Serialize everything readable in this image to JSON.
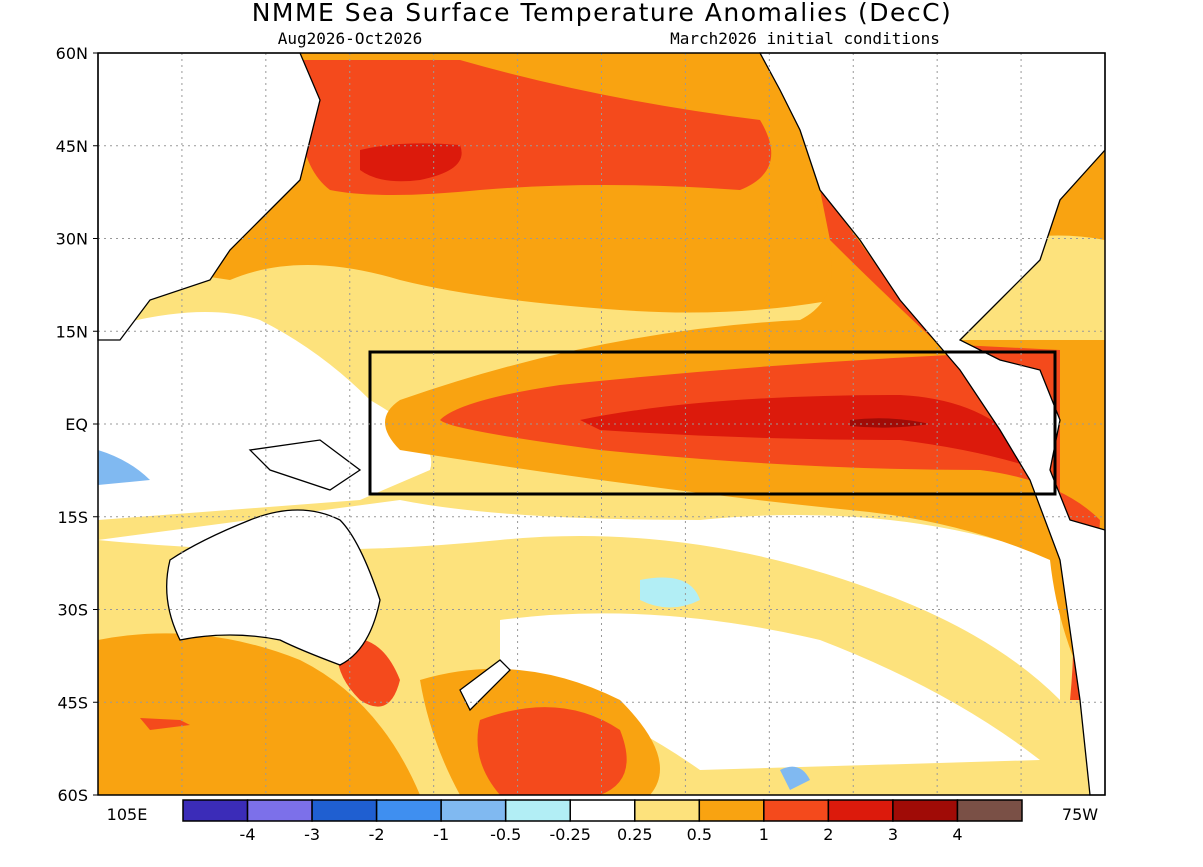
{
  "title": "NMME Sea Surface Temperature Anomalies (DecC)",
  "subtitle_left": "Aug2026-Oct2026",
  "subtitle_right": "March2026 initial conditions",
  "lat_labels": [
    "60N",
    "45N",
    "30N",
    "15N",
    "EQ",
    "15S",
    "30S",
    "45S",
    "60S"
  ],
  "lon_labels": [
    "105E",
    "75W"
  ],
  "colorbar": {
    "colors": [
      "#3b2cb8",
      "#7c70ea",
      "#1f5fd1",
      "#3f8ff0",
      "#80b9f1",
      "#b2eef5",
      "#ffffff",
      "#fde27c",
      "#f9a311",
      "#f44a1c",
      "#dc1a0c",
      "#a00b06",
      "#7a5046"
    ],
    "labels": [
      "-4",
      "-3",
      "-2",
      "-1",
      "-0.5",
      "-0.25",
      "0.25",
      "0.5",
      "1",
      "2",
      "3",
      "4"
    ]
  }
}
